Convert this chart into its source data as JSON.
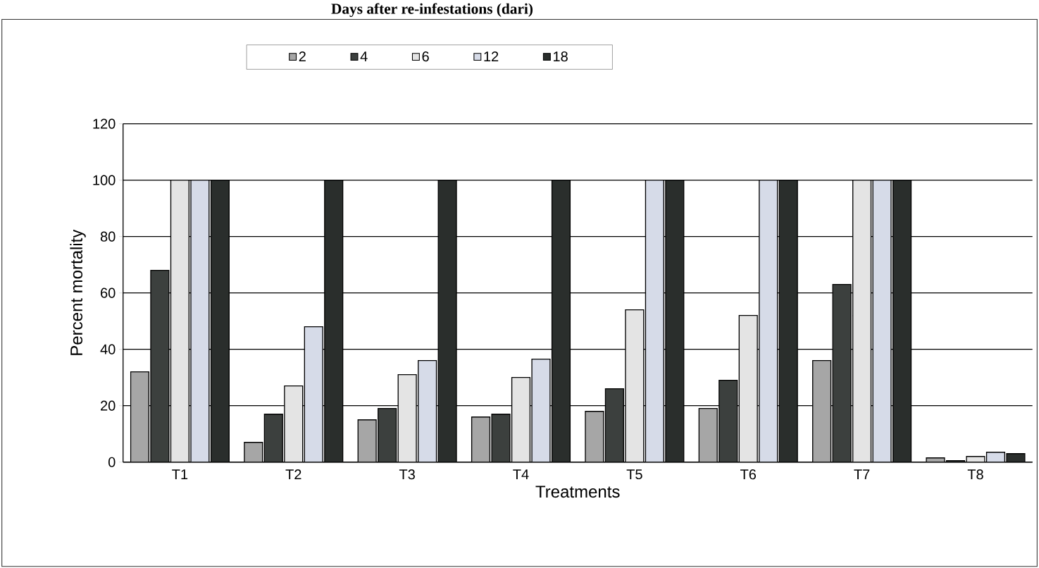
{
  "chart_data": {
    "type": "bar",
    "title": "Days after re-infestations (dari)",
    "xlabel": "Treatments",
    "ylabel": "Percent mortality",
    "categories": [
      "T1",
      "T2",
      "T3",
      "T4",
      "T5",
      "T6",
      "T7",
      "T8"
    ],
    "series": [
      {
        "name": "2",
        "color": "#a6a6a6",
        "values": [
          32,
          7,
          15,
          16,
          18,
          19,
          36,
          1.5
        ]
      },
      {
        "name": "4",
        "color": "#3c403e",
        "values": [
          68,
          17,
          19,
          17,
          26,
          29,
          63,
          0.5
        ]
      },
      {
        "name": "6",
        "color": "#e4e4e4",
        "values": [
          100,
          27,
          31,
          30,
          54,
          52,
          100,
          2
        ]
      },
      {
        "name": "12",
        "color": "#d6dbe8",
        "values": [
          100,
          48,
          36,
          36.5,
          100,
          100,
          100,
          3.5
        ]
      },
      {
        "name": "18",
        "color": "#2a2e2c",
        "values": [
          100,
          100,
          100,
          100,
          100,
          100,
          100,
          3
        ]
      }
    ],
    "ylim": [
      0,
      120
    ],
    "yticks": [
      0,
      20,
      40,
      60,
      80,
      100,
      120
    ],
    "grid": "y",
    "legend": "top"
  }
}
